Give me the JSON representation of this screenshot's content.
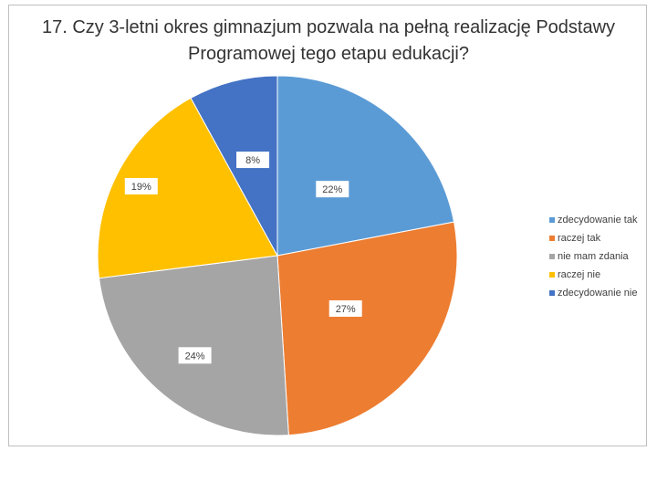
{
  "chart_data": {
    "type": "pie",
    "title": "17. Czy 3-letni okres gimnazjum pozwala na pełną realizację Podstawy Programowej tego etapu edukacji?",
    "categories": [
      "zdecydowanie tak",
      "raczej tak",
      "nie mam zdania",
      "raczej nie",
      "zdecydowanie nie"
    ],
    "values": [
      22,
      27,
      24,
      19,
      8
    ],
    "data_labels": [
      "22%",
      "27%",
      "24%",
      "19%",
      "8%"
    ],
    "colors": [
      "#5b9bd5",
      "#ed7d31",
      "#a5a5a5",
      "#ffc000",
      "#4472c4"
    ],
    "legend_position": "right"
  }
}
